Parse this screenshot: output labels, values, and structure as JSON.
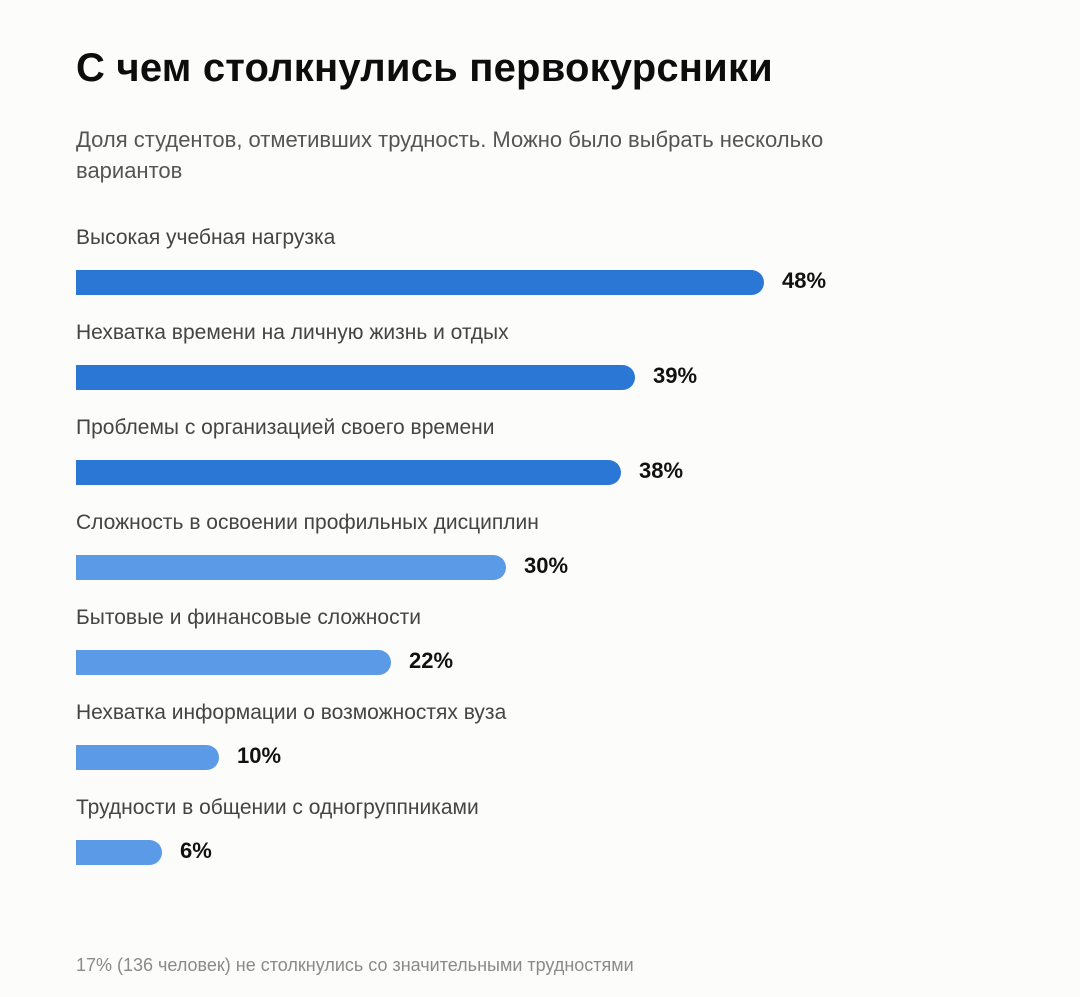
{
  "title": "С чем столкнулись первокурсники",
  "subtitle": "Доля студентов, отметивших трудность. Можно было выбрать несколько вариантов",
  "footnote": "17% (136 человек) не столкнулись со значительными трудностями",
  "colors": {
    "dark_bar": "#2b77d5",
    "light_bar": "#5b9ae6"
  },
  "chart_data": {
    "type": "bar",
    "orientation": "horizontal",
    "unit": "%",
    "categories": [
      "Высокая учебная нагрузка",
      "Нехватка времени на личную жизнь и отдых",
      "Проблемы с организацией своего времени",
      "Сложность в освоении профильных дисциплин",
      "Бытовые и финансовые сложности",
      "Нехватка информации о возможностях вуза",
      "Трудности в общении с одногруппниками"
    ],
    "values": [
      48,
      39,
      38,
      30,
      22,
      10,
      6
    ],
    "value_labels": [
      "48%",
      "39%",
      "38%",
      "30%",
      "22%",
      "10%",
      "6%"
    ],
    "highlight": [
      true,
      true,
      true,
      false,
      false,
      false,
      false
    ],
    "xlim": [
      0,
      48
    ],
    "grid": false,
    "legend": "none"
  }
}
